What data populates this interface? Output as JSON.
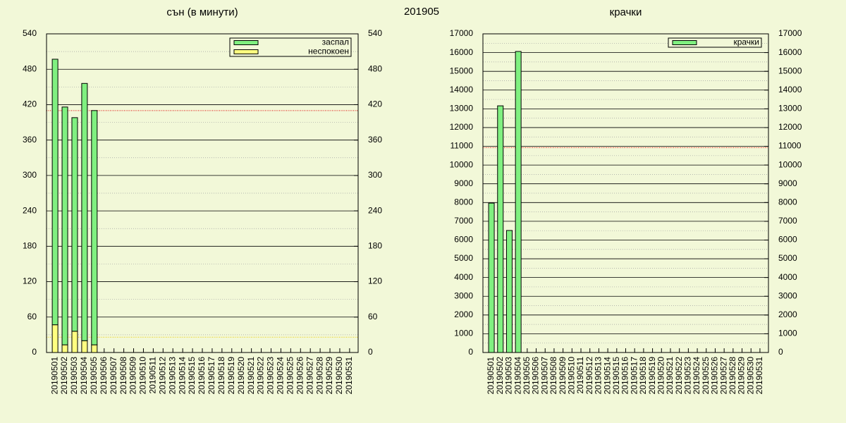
{
  "title": "201905",
  "chart_data": [
    {
      "type": "bar",
      "stacked": true,
      "title": "сън (в минути)",
      "categories": [
        "20190501",
        "20190502",
        "20190503",
        "20190504",
        "20190505",
        "20190506",
        "20190507",
        "20190508",
        "20190509",
        "20190510",
        "20190511",
        "20190512",
        "20190513",
        "20190514",
        "20190515",
        "20190516",
        "20190517",
        "20190518",
        "20190519",
        "20190520",
        "20190521",
        "20190522",
        "20190523",
        "20190524",
        "20190525",
        "20190526",
        "20190527",
        "20190528",
        "20190529",
        "20190530",
        "20190531"
      ],
      "series": [
        {
          "name": "заспал",
          "color": "#80f080",
          "values": [
            450,
            403,
            362,
            436,
            397,
            null,
            null,
            null,
            null,
            null,
            null,
            null,
            null,
            null,
            null,
            null,
            null,
            null,
            null,
            null,
            null,
            null,
            null,
            null,
            null,
            null,
            null,
            null,
            null,
            null,
            null
          ]
        },
        {
          "name": "неспокоен",
          "color": "#ffff80",
          "values": [
            47,
            13,
            36,
            20,
            13,
            null,
            null,
            null,
            null,
            null,
            null,
            null,
            null,
            null,
            null,
            null,
            null,
            null,
            null,
            null,
            null,
            null,
            null,
            null,
            null,
            null,
            null,
            null,
            null,
            null,
            null
          ]
        }
      ],
      "ylim": [
        0,
        540
      ],
      "yticks": [
        0,
        60,
        120,
        180,
        240,
        300,
        360,
        420,
        480,
        540
      ],
      "yminorticks": [
        30,
        90,
        150,
        210,
        270,
        330,
        390,
        450,
        510
      ],
      "y2lim": [
        0,
        540
      ],
      "y2ticks": [
        0,
        60,
        120,
        180,
        240,
        300,
        360,
        420,
        480,
        540
      ],
      "avg_lines": [
        {
          "value": 410,
          "color": "#e00000"
        },
        {
          "value": 26,
          "color": "#e8c800"
        }
      ],
      "grid": true,
      "legend": "top right"
    },
    {
      "type": "bar",
      "stacked": false,
      "title": "крачки",
      "categories": [
        "20190501",
        "20190502",
        "20190503",
        "20190504",
        "20190505",
        "20190506",
        "20190507",
        "20190508",
        "20190509",
        "20190510",
        "20190511",
        "20190512",
        "20190513",
        "20190514",
        "20190515",
        "20190516",
        "20190517",
        "20190518",
        "20190519",
        "20190520",
        "20190521",
        "20190522",
        "20190523",
        "20190524",
        "20190525",
        "20190526",
        "20190527",
        "20190528",
        "20190529",
        "20190530",
        "20190531"
      ],
      "series": [
        {
          "name": "крачки",
          "color": "#80f080",
          "values": [
            7970,
            13160,
            6510,
            16060,
            null,
            null,
            null,
            null,
            null,
            null,
            null,
            null,
            null,
            null,
            null,
            null,
            null,
            null,
            null,
            null,
            null,
            null,
            null,
            null,
            null,
            null,
            null,
            null,
            null,
            null,
            null
          ]
        }
      ],
      "ylim": [
        0,
        17000
      ],
      "yticks": [
        0,
        1000,
        2000,
        3000,
        4000,
        5000,
        6000,
        7000,
        8000,
        9000,
        10000,
        11000,
        12000,
        13000,
        14000,
        15000,
        16000,
        17000
      ],
      "yminorticks": [
        500,
        1500,
        2500,
        3500,
        4500,
        5500,
        6500,
        7500,
        8500,
        9500,
        10500,
        11500,
        12500,
        13500,
        14500,
        15500,
        16500
      ],
      "y2lim": [
        0,
        17000
      ],
      "y2ticks": [
        0,
        1000,
        2000,
        3000,
        4000,
        5000,
        6000,
        7000,
        8000,
        9000,
        10000,
        11000,
        12000,
        13000,
        14000,
        15000,
        16000,
        17000
      ],
      "avg_lines": [
        {
          "value": 10930,
          "color": "#e00000"
        }
      ],
      "grid": true,
      "legend": "top right"
    }
  ]
}
